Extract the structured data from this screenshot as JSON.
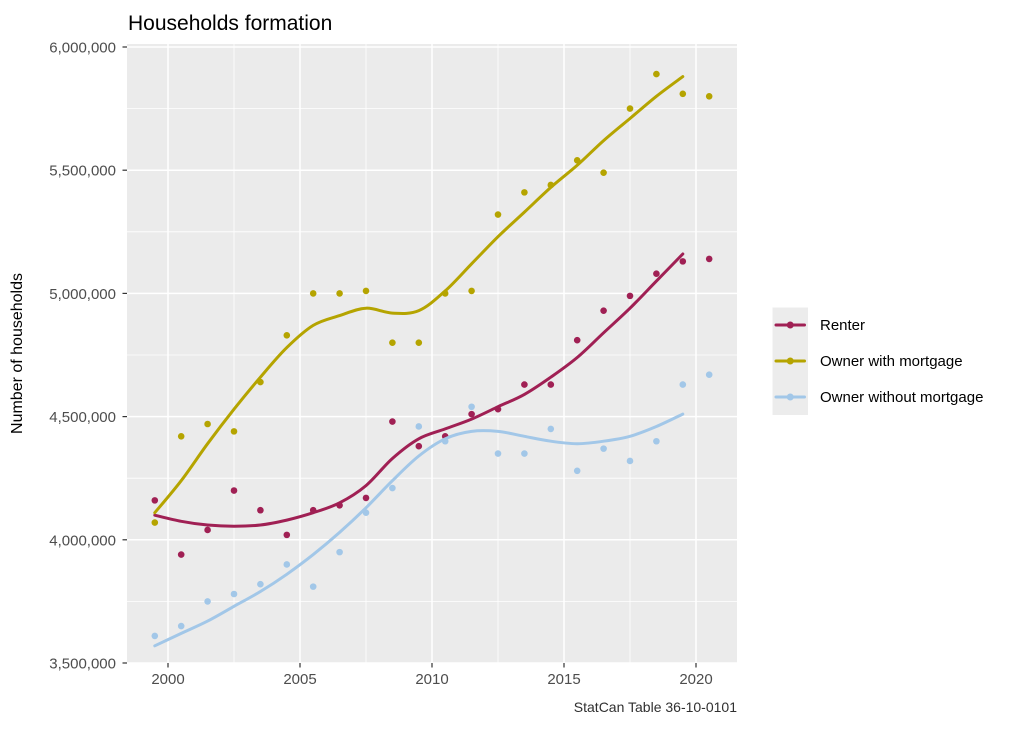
{
  "chart": {
    "title": "Households formation",
    "y_axis_title": "Number of households",
    "caption": "StatCan Table 36-10-0101",
    "panel_background": "#EBEBEB",
    "gridline_color": "#FFFFFF",
    "tick_color": "#333333",
    "tick_label_color": "#4D4D4D",
    "legend": {
      "position": "right",
      "key_background": "#ECECEC",
      "items": [
        {
          "label": "Renter",
          "color": "#A02054"
        },
        {
          "label": "Owner with mortgage",
          "color": "#B5A400"
        },
        {
          "label": "Owner without mortgage",
          "color": "#A2C7E8"
        }
      ]
    }
  },
  "chart_data": {
    "type": "scatter",
    "subtype": "yearly scatter points with loess smooth trend lines",
    "title": "Households formation",
    "xlabel": "",
    "ylabel": "Number of households",
    "caption": "StatCan Table 36-10-0101",
    "legend_position": "right",
    "grid": "white major and minor gridlines on grey panel",
    "xlim": [
      1998.4,
      2021.6
    ],
    "ylim": [
      3496000,
      6004000
    ],
    "x_ticks": [
      2000,
      2005,
      2010,
      2015,
      2020
    ],
    "x_minor_ticks": [
      2002.5,
      2007.5,
      2012.5,
      2017.5
    ],
    "y_ticks": [
      3500000,
      4000000,
      4500000,
      5000000,
      5500000,
      6000000
    ],
    "y_tick_labels": [
      "3,500,000",
      "4,000,000",
      "4,500,000",
      "5,000,000",
      "5,500,000",
      "6,000,000"
    ],
    "y_minor_ticks": [
      3750000,
      4250000,
      4750000,
      5250000,
      5750000
    ],
    "x": [
      1999.5,
      2000.5,
      2001.5,
      2002.5,
      2003.5,
      2004.5,
      2005.5,
      2006.5,
      2007.5,
      2008.5,
      2009.5,
      2010.5,
      2011.5,
      2012.5,
      2013.5,
      2014.5,
      2015.5,
      2016.5,
      2017.5,
      2018.5,
      2019.5,
      2020.5
    ],
    "smooth_x": [
      1999.5,
      2000.5,
      2001.5,
      2002.5,
      2003.5,
      2004.5,
      2005.5,
      2006.5,
      2007.5,
      2008.5,
      2009.5,
      2010.5,
      2011.5,
      2012.5,
      2013.5,
      2014.5,
      2015.5,
      2016.5,
      2017.5,
      2018.5,
      2019.5
    ],
    "series": [
      {
        "name": "Renter",
        "color": "#A02054",
        "points": [
          4160000,
          3940000,
          4040000,
          4200000,
          4120000,
          4020000,
          4120000,
          4140000,
          4170000,
          4480000,
          4380000,
          4420000,
          4510000,
          4530000,
          4630000,
          4630000,
          4810000,
          4930000,
          4990000,
          5080000,
          5130000,
          5140000
        ],
        "smooth": [
          4100000,
          4075000,
          4060000,
          4055000,
          4060000,
          4080000,
          4110000,
          4150000,
          4220000,
          4330000,
          4410000,
          4450000,
          4490000,
          4540000,
          4590000,
          4660000,
          4740000,
          4840000,
          4940000,
          5050000,
          5160000
        ]
      },
      {
        "name": "Owner with mortgage",
        "color": "#B5A400",
        "points": [
          4070000,
          4420000,
          4470000,
          4440000,
          4640000,
          4830000,
          5000000,
          5000000,
          5010000,
          4800000,
          4800000,
          5000000,
          5010000,
          5320000,
          5410000,
          5440000,
          5540000,
          5490000,
          5750000,
          5890000,
          5810000,
          5800000
        ],
        "smooth": [
          4110000,
          4240000,
          4390000,
          4530000,
          4660000,
          4780000,
          4870000,
          4910000,
          4940000,
          4920000,
          4930000,
          5010000,
          5120000,
          5230000,
          5330000,
          5430000,
          5520000,
          5620000,
          5710000,
          5800000,
          5880000
        ]
      },
      {
        "name": "Owner without mortgage",
        "color": "#A2C7E8",
        "points": [
          3610000,
          3650000,
          3750000,
          3780000,
          3820000,
          3900000,
          3810000,
          3950000,
          4110000,
          4210000,
          4460000,
          4400000,
          4540000,
          4350000,
          4350000,
          4450000,
          4280000,
          4370000,
          4320000,
          4400000,
          4630000,
          4670000
        ],
        "smooth": [
          3570000,
          3620000,
          3670000,
          3730000,
          3790000,
          3860000,
          3940000,
          4030000,
          4130000,
          4240000,
          4340000,
          4410000,
          4440000,
          4440000,
          4420000,
          4400000,
          4390000,
          4400000,
          4420000,
          4460000,
          4510000
        ]
      }
    ]
  }
}
